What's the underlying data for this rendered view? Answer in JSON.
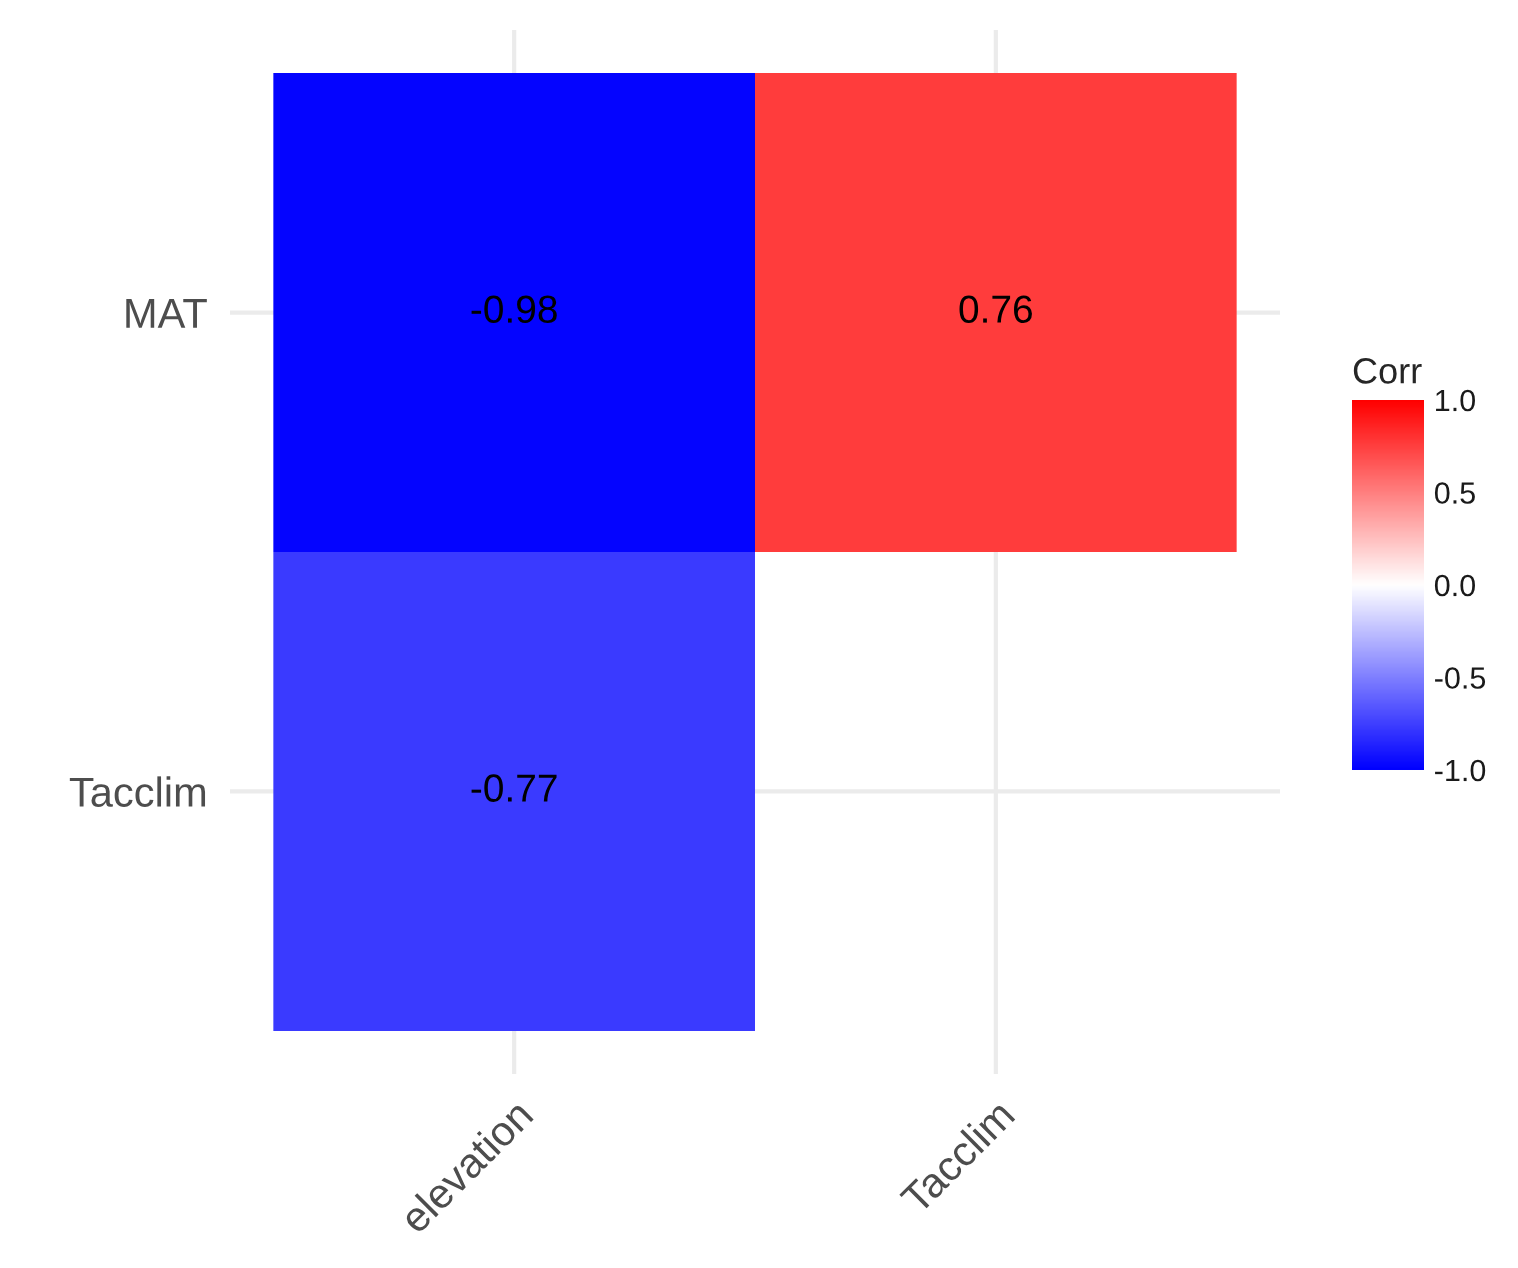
{
  "chart_data": {
    "type": "heatmap",
    "categories": [
      "elevation",
      "Tacclim"
    ],
    "y_categories": [
      "MAT",
      "Tacclim"
    ],
    "cells": [
      [
        -0.98,
        0.76
      ],
      [
        -0.77,
        null
      ]
    ],
    "data_labels": true,
    "clabel": "Corr",
    "clim": [
      -1,
      1
    ],
    "cticks": [
      {
        "value": 1,
        "label": "1.0"
      },
      {
        "value": 0.5,
        "label": "0.5"
      },
      {
        "value": 0,
        "label": "0.0"
      },
      {
        "value": -0.5,
        "label": "-0.5"
      },
      {
        "value": -1,
        "label": "-1.0"
      }
    ],
    "grid": true
  }
}
